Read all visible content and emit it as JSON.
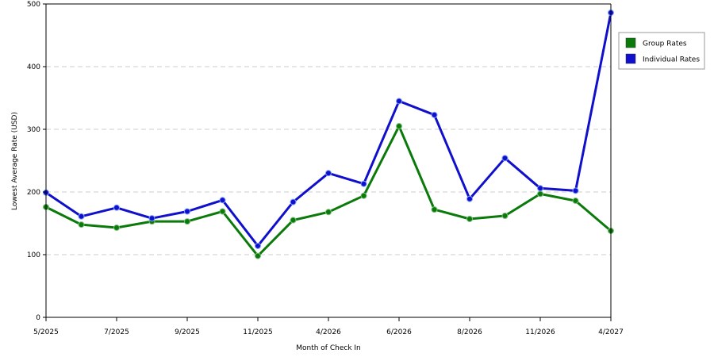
{
  "chart_data": {
    "type": "line",
    "title": "",
    "xlabel": "Month of Check In",
    "ylabel": "Lowest Average Rate (USD)",
    "ylim": [
      0,
      500
    ],
    "yticks": [
      "0",
      "100",
      "200",
      "300",
      "400",
      "500"
    ],
    "grid": true,
    "legend_position": "right",
    "x_tick_labels": [
      "5/2025",
      "7/2025",
      "9/2025",
      "11/2025",
      "4/2026",
      "6/2026",
      "8/2026",
      "11/2026",
      "4/2027"
    ],
    "series": [
      {
        "name": "Group Rates",
        "color": "#0a7a0a",
        "values": [
          176,
          148,
          143,
          153,
          153,
          169,
          98,
          155,
          168,
          194,
          305,
          172,
          157,
          162,
          197,
          186,
          138
        ]
      },
      {
        "name": "Individual Rates",
        "color": "#1010cc",
        "values": [
          199,
          161,
          175,
          158,
          169,
          187,
          114,
          184,
          230,
          213,
          345,
          323,
          189,
          254,
          206,
          202,
          486
        ]
      }
    ]
  }
}
